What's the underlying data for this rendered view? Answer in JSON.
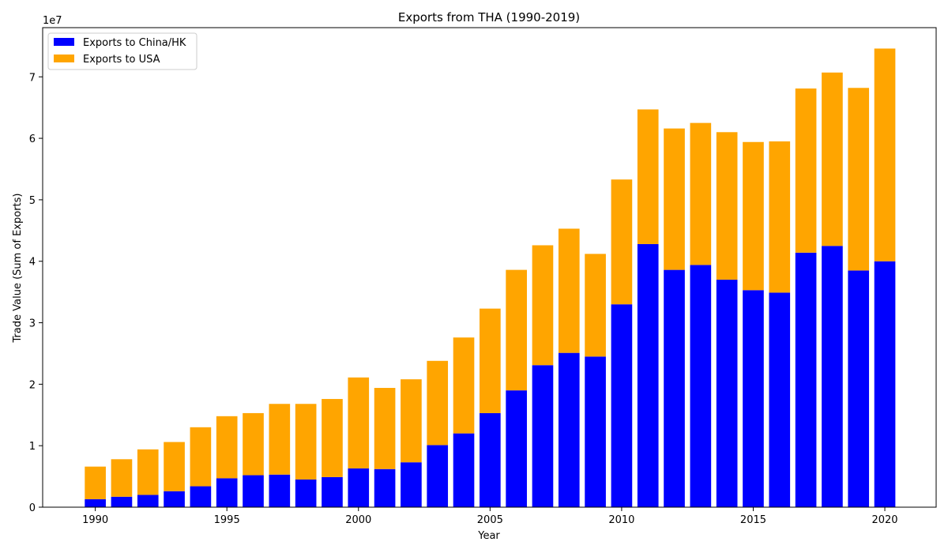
{
  "chart_data": {
    "type": "bar",
    "stacked": true,
    "title": "Exports from THA (1990-2019)",
    "xlabel": "Year",
    "ylabel": "Trade Value (Sum of Exports)",
    "y_offset_label": "1e7",
    "xlim": [
      1988.0,
      2021.95
    ],
    "ylim": [
      0,
      78000000
    ],
    "x_ticks": [
      1990,
      1995,
      2000,
      2005,
      2010,
      2015,
      2020
    ],
    "y_ticks": [
      0,
      10000000,
      20000000,
      30000000,
      40000000,
      50000000,
      60000000,
      70000000
    ],
    "y_tick_labels": [
      "0",
      "1",
      "2",
      "3",
      "4",
      "5",
      "6",
      "7"
    ],
    "legend_position": "upper-left",
    "grid": false,
    "x": [
      1990,
      1991,
      1992,
      1993,
      1994,
      1995,
      1996,
      1997,
      1998,
      1999,
      2000,
      2001,
      2002,
      2003,
      2004,
      2005,
      2006,
      2007,
      2008,
      2009,
      2010,
      2011,
      2012,
      2013,
      2014,
      2015,
      2016,
      2017,
      2018,
      2019,
      2020
    ],
    "series": [
      {
        "name": "Exports to China/HK",
        "color": "#0000ff",
        "values": [
          1300000,
          1700000,
          2000000,
          2600000,
          3400000,
          4700000,
          5200000,
          5300000,
          4500000,
          4900000,
          6300000,
          6200000,
          7300000,
          10100000,
          12000000,
          15300000,
          19000000,
          23100000,
          25100000,
          24500000,
          33000000,
          42800000,
          38600000,
          39400000,
          37000000,
          35300000,
          34900000,
          41400000,
          42500000,
          38500000,
          40000000
        ]
      },
      {
        "name": "Exports to USA",
        "color": "#ffa500",
        "values": [
          5300000,
          6100000,
          7400000,
          8000000,
          9600000,
          10100000,
          10100000,
          11500000,
          12300000,
          12700000,
          14800000,
          13200000,
          13500000,
          13700000,
          15600000,
          17000000,
          19600000,
          19500000,
          20200000,
          16700000,
          20300000,
          21900000,
          23000000,
          23100000,
          24000000,
          24100000,
          24600000,
          26700000,
          28200000,
          29700000,
          34600000
        ]
      }
    ]
  }
}
